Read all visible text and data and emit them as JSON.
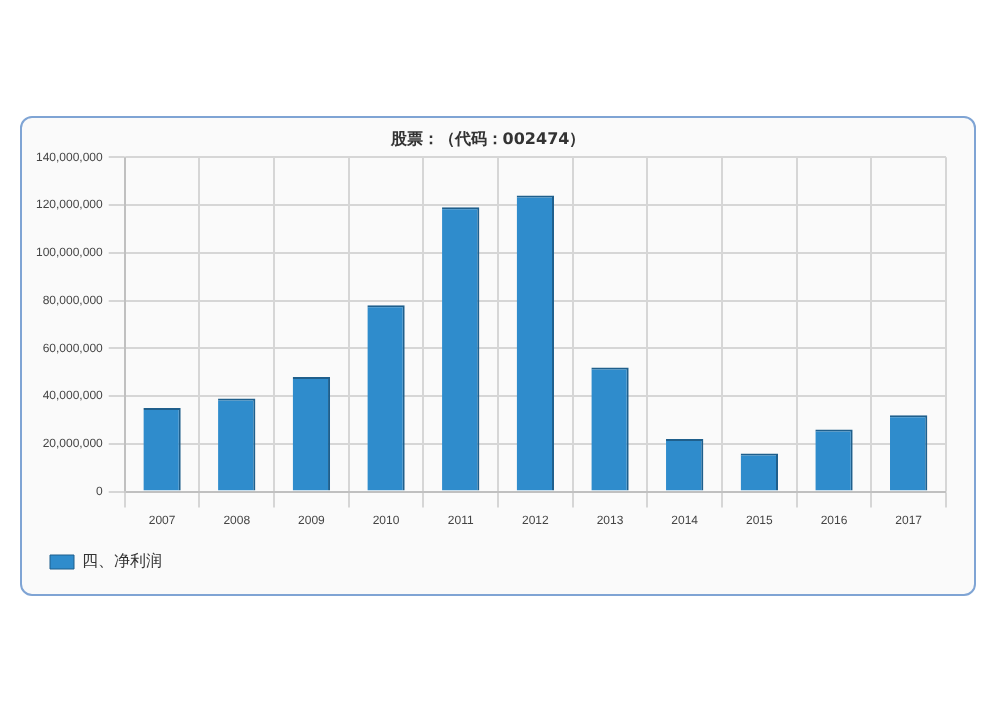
{
  "chart_data": {
    "type": "bar",
    "title": "股票：（代码：002474）",
    "categories": [
      "2007",
      "2008",
      "2009",
      "2010",
      "2011",
      "2012",
      "2013",
      "2014",
      "2015",
      "2016",
      "2017"
    ],
    "series": [
      {
        "name": "四、净利润",
        "color": "#2f8ccc",
        "values": [
          35000000,
          39000000,
          48000000,
          78000000,
          119000000,
          124000000,
          52000000,
          22000000,
          16000000,
          26000000,
          32000000
        ]
      }
    ],
    "ylim": [
      0,
      140000000
    ],
    "yticks": [
      0,
      {
        "value": 20000000,
        "label": "20,000,000"
      },
      {
        "value": 40000000,
        "label": "40,000,000"
      },
      {
        "value": 60000000,
        "label": "60,000,000"
      },
      {
        "value": 80000000,
        "label": "80,000,000"
      },
      {
        "value": 100000000,
        "label": "100,000,000"
      },
      {
        "value": 120000000,
        "label": "120,000,000"
      },
      {
        "value": 140000000,
        "label": "140,000,000"
      }
    ],
    "grid": true,
    "legend": "bottom left"
  }
}
